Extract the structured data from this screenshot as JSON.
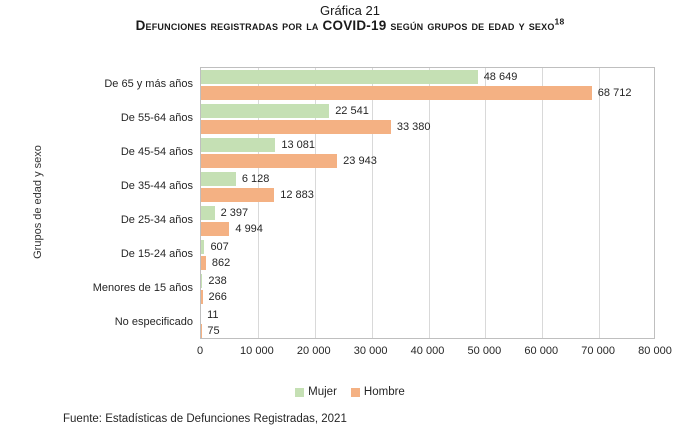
{
  "title": "Gráfica 21",
  "subtitle": {
    "text": "Defunciones registradas por la COVID-19 según grupos de edad y sexo",
    "superscript": "18"
  },
  "footer": "Fuente: Estadísticas de Defunciones Registradas, 2021",
  "colors": {
    "mujer": "#C5E0B4",
    "hombre": "#F4B183",
    "gridline": "#D9D9D9",
    "plot_border": "#BFBFBF"
  },
  "chart_data": {
    "type": "bar",
    "orientation": "horizontal",
    "title": "Defunciones registradas por la COVID-19 según grupos de edad y sexo",
    "ylabel": "Grupos de edad y sexo",
    "xlabel": "",
    "xlim": [
      0,
      80000
    ],
    "grid": true,
    "legend_position": "bottom",
    "categories": [
      "De 65 y más años",
      "De 55-64 años",
      "De 45-54 años",
      "De 35-44 años",
      "De 25-34 años",
      "De 15-24 años",
      "Menores de 15 años",
      "No especificado"
    ],
    "series": [
      {
        "name": "Mujer",
        "color": "#C5E0B4",
        "values": [
          48649,
          22541,
          13081,
          6128,
          2397,
          607,
          238,
          11
        ],
        "labels": [
          "48 649",
          "22 541",
          "13 081",
          "6 128",
          "2 397",
          "607",
          "238",
          "11"
        ]
      },
      {
        "name": "Hombre",
        "color": "#F4B183",
        "values": [
          68712,
          33380,
          23943,
          12883,
          4994,
          862,
          266,
          75
        ],
        "labels": [
          "68 712",
          "33 380",
          "23 943",
          "12 883",
          "4 994",
          "862",
          "266",
          "75"
        ]
      }
    ],
    "xticks": {
      "values": [
        0,
        10000,
        20000,
        30000,
        40000,
        50000,
        60000,
        70000,
        80000
      ],
      "labels": [
        "0",
        "10 000",
        "20 000",
        "30 000",
        "40 000",
        "50 000",
        "60 000",
        "70 000",
        "80 000"
      ]
    }
  }
}
